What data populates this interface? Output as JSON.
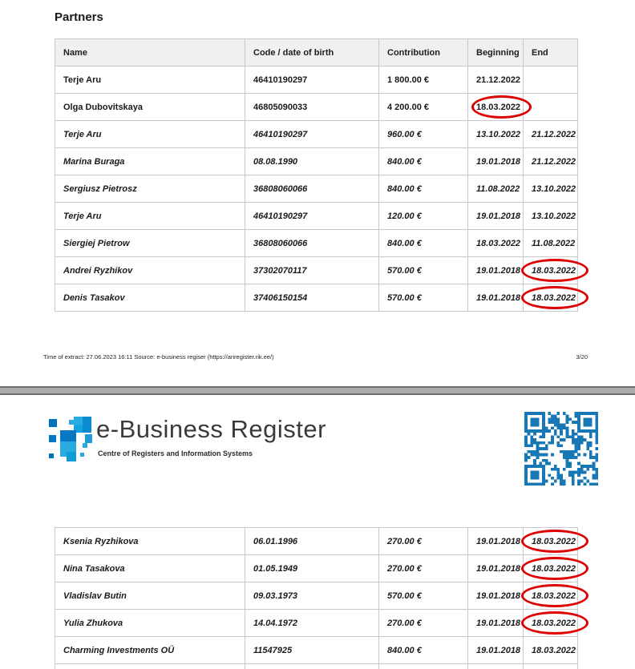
{
  "page1": {
    "title": "Partners",
    "footer_left": "Time of extract: 27.06.2023 16:11 Source: e-business regiser (https://ariregister.rik.ee/)",
    "footer_right": "3/20"
  },
  "page2": {
    "logo_title": "e-Business Register",
    "logo_subtitle": "Centre of Registers and Information Systems"
  },
  "table_headers": [
    "Name",
    "Code / date of birth",
    "Contribution",
    "Beginning",
    "End"
  ],
  "tables": [
    {
      "rows": [
        {
          "name": "Terje Aru",
          "code": "46410190297",
          "contribution": "1 800.00 €",
          "beginning": "21.12.2022",
          "end": "",
          "italic": false,
          "circle": null
        },
        {
          "name": "Olga Dubovitskaya",
          "code": "46805090033",
          "contribution": "4 200.00 €",
          "beginning": "18.03.2022",
          "end": "",
          "italic": false,
          "circle": "beginning"
        },
        {
          "name": "Terje Aru",
          "code": "46410190297",
          "contribution": "960.00 €",
          "beginning": "13.10.2022",
          "end": "21.12.2022",
          "italic": true,
          "circle": null
        },
        {
          "name": "Marina Buraga",
          "code": "08.08.1990",
          "contribution": "840.00 €",
          "beginning": "19.01.2018",
          "end": "21.12.2022",
          "italic": true,
          "circle": null
        },
        {
          "name": "Sergiusz Pietrosz",
          "code": "36808060066",
          "contribution": "840.00 €",
          "beginning": "11.08.2022",
          "end": "13.10.2022",
          "italic": true,
          "circle": null
        },
        {
          "name": "Terje Aru",
          "code": "46410190297",
          "contribution": "120.00 €",
          "beginning": "19.01.2018",
          "end": "13.10.2022",
          "italic": true,
          "circle": null
        },
        {
          "name": "Siergiej Pietrow",
          "code": "36808060066",
          "contribution": "840.00 €",
          "beginning": "18.03.2022",
          "end": "11.08.2022",
          "italic": true,
          "circle": null
        },
        {
          "name": "Andrei Ryzhikov",
          "code": "37302070117",
          "contribution": "570.00 €",
          "beginning": "19.01.2018",
          "end": "18.03.2022",
          "italic": true,
          "circle": "end"
        },
        {
          "name": "Denis Tasakov",
          "code": "37406150154",
          "contribution": "570.00 €",
          "beginning": "19.01.2018",
          "end": "18.03.2022",
          "italic": true,
          "circle": "end"
        }
      ]
    },
    {
      "rows": [
        {
          "name": "Ksenia Ryzhikova",
          "code": "06.01.1996",
          "contribution": "270.00 €",
          "beginning": "19.01.2018",
          "end": "18.03.2022",
          "italic": true,
          "circle": "end"
        },
        {
          "name": "Nina Tasakova",
          "code": "01.05.1949",
          "contribution": "270.00 €",
          "beginning": "19.01.2018",
          "end": "18.03.2022",
          "italic": true,
          "circle": "end"
        },
        {
          "name": "Vladislav Butin",
          "code": "09.03.1973",
          "contribution": "570.00 €",
          "beginning": "19.01.2018",
          "end": "18.03.2022",
          "italic": true,
          "circle": "end"
        },
        {
          "name": "Yulia Zhukova",
          "code": "14.04.1972",
          "contribution": "270.00 €",
          "beginning": "19.01.2018",
          "end": "18.03.2022",
          "italic": true,
          "circle": "end"
        },
        {
          "name": "Charming Investments OÜ",
          "code": "11547925",
          "contribution": "840.00 €",
          "beginning": "19.01.2018",
          "end": "18.03.2022",
          "italic": true,
          "circle": null
        }
      ]
    }
  ],
  "icons": {
    "logo_icon": "pixel-mosaic-icon",
    "qr": "qr-code-icon"
  },
  "colors": {
    "annotation_red": "#de0000",
    "qr_blue": "#1878b6",
    "brand_light_blue": "#29abe2",
    "brand_dark_blue": "#0072bc",
    "table_header_bg": "#f0f0f0",
    "table_border": "#c9c9c9",
    "page_break_gray": "#ababab"
  }
}
